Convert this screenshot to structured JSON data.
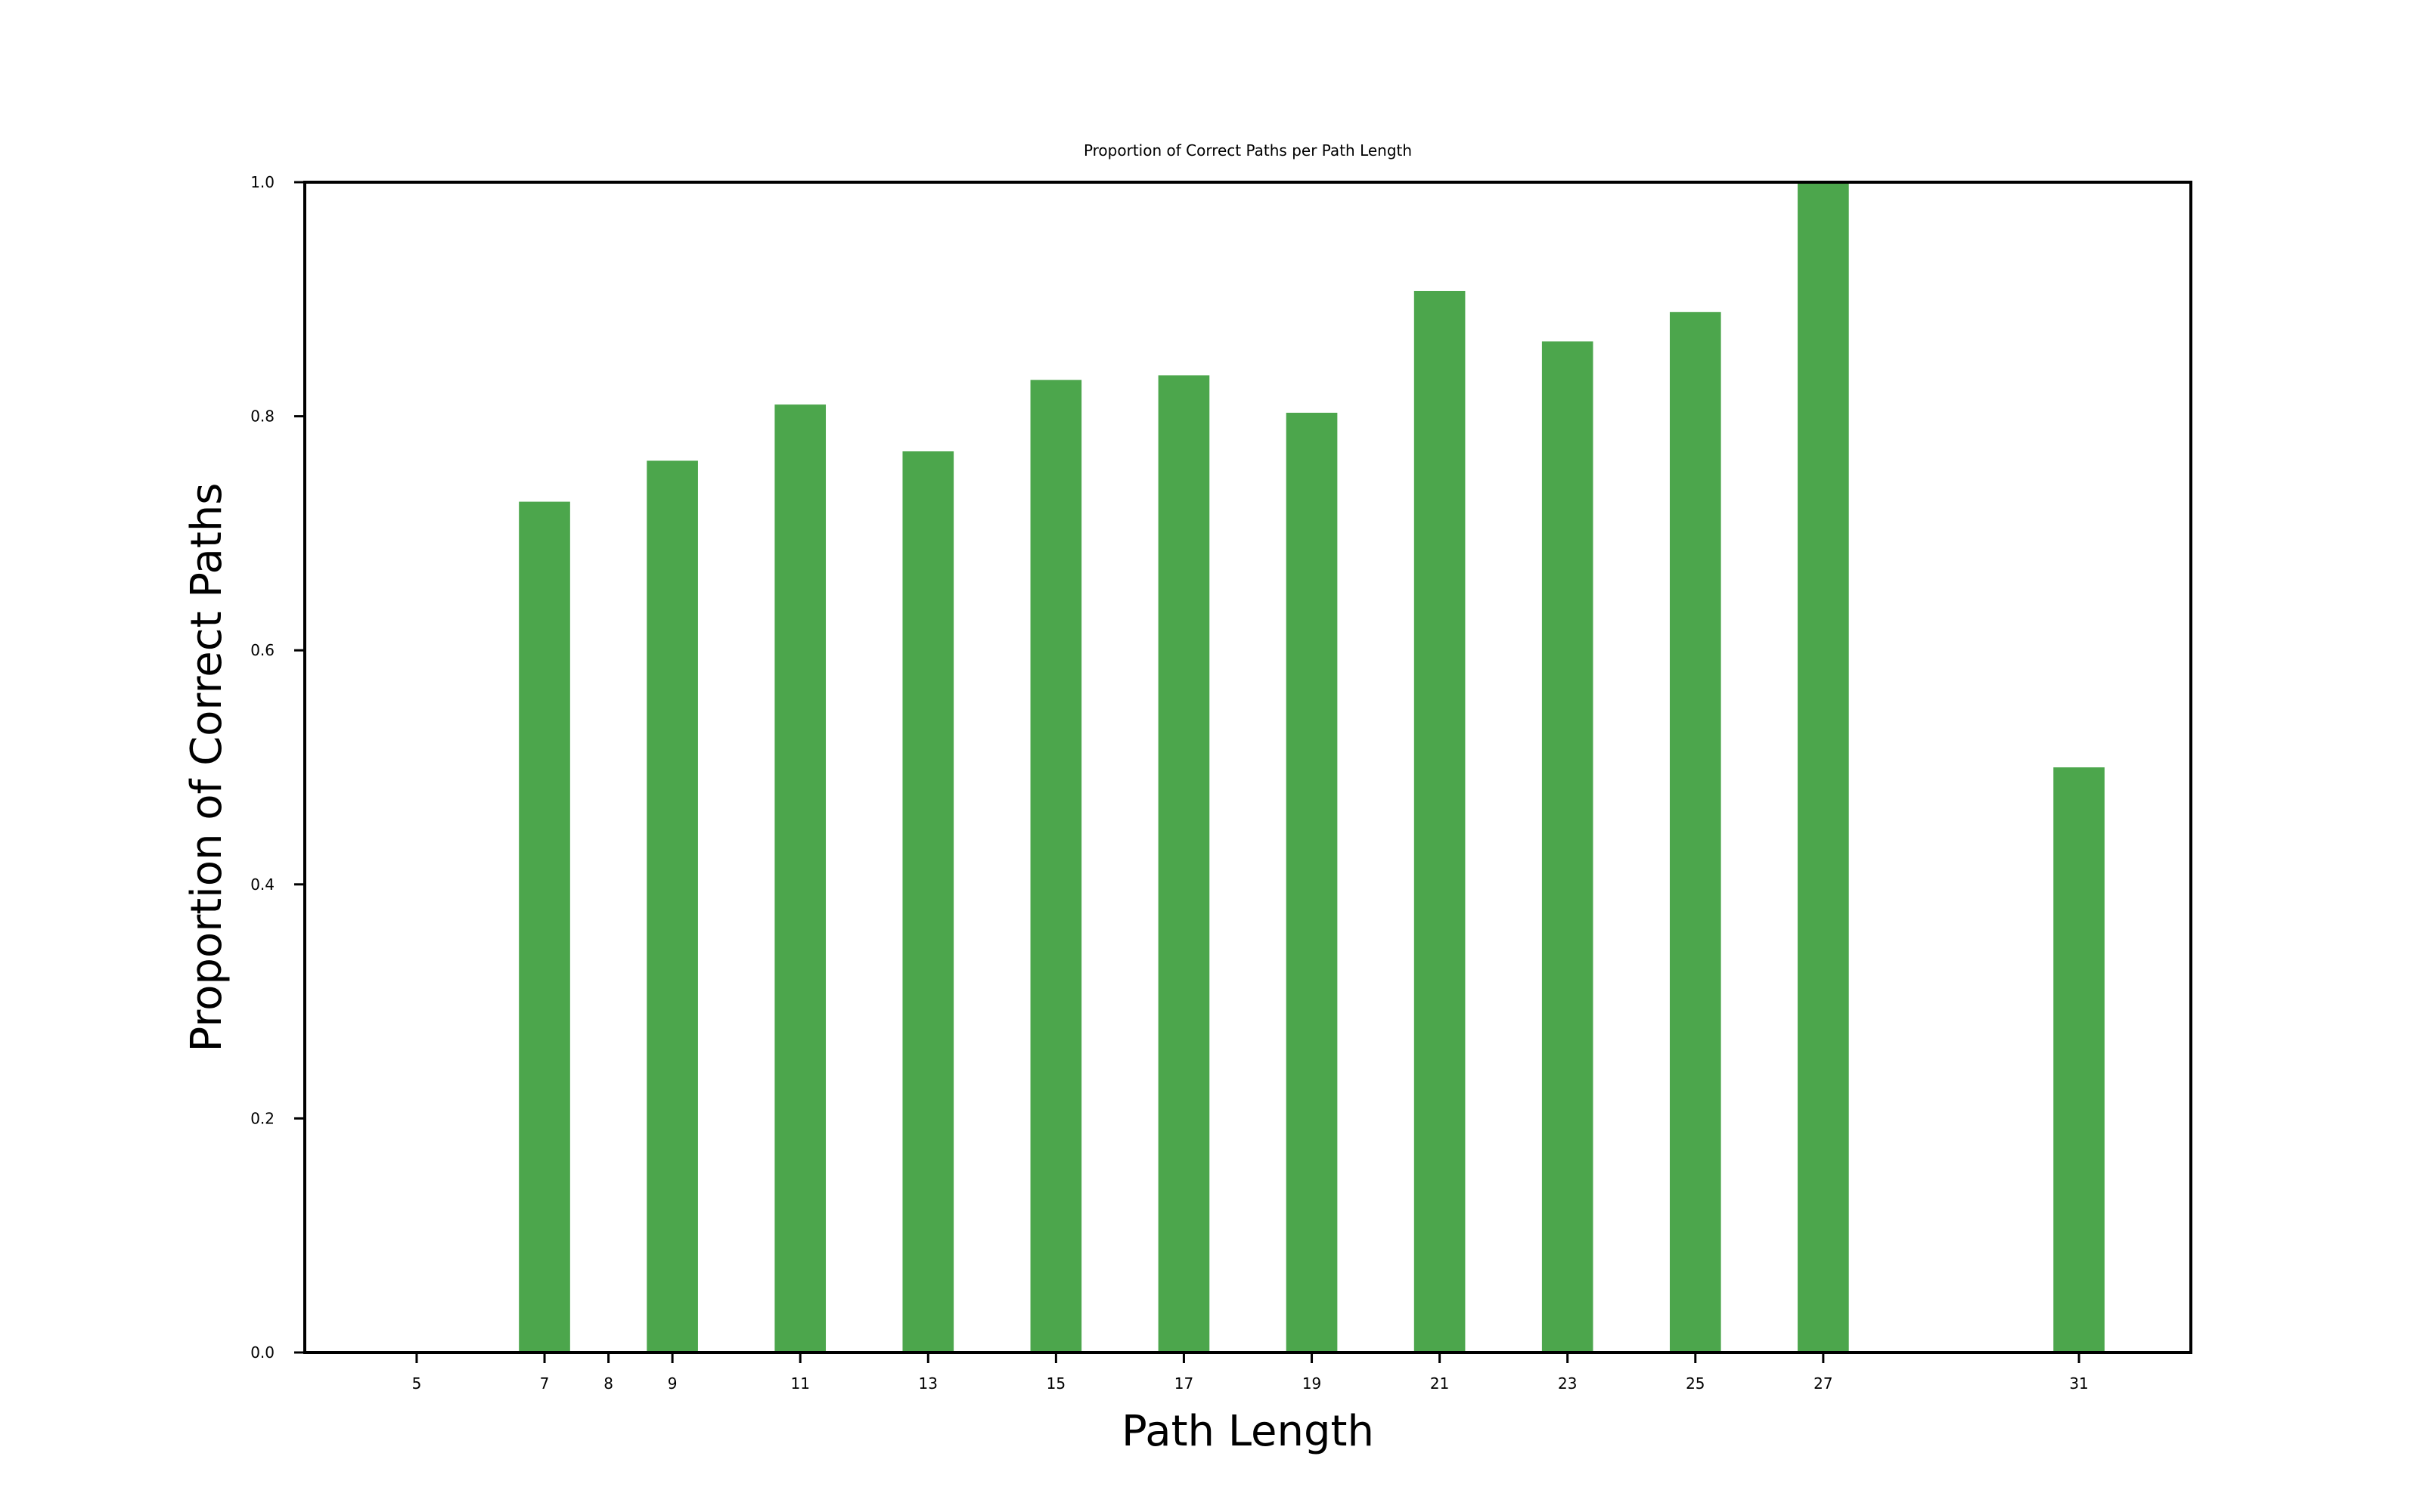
{
  "chart_data": {
    "type": "bar",
    "title": "Proportion of Correct Paths per Path Length",
    "xlabel": "Path Length",
    "ylabel": "Proportion of Correct Paths",
    "x_ticks": [
      5,
      7,
      8,
      9,
      11,
      13,
      15,
      17,
      19,
      21,
      23,
      25,
      27,
      31
    ],
    "y_ticks": [
      "0.0",
      "0.2",
      "0.4",
      "0.6",
      "0.8",
      "1.0"
    ],
    "xlim": [
      3.25,
      32.75
    ],
    "ylim": [
      0,
      1.0
    ],
    "bar_color": "#4ca64c",
    "bars": [
      {
        "x": 5,
        "value": 0.0
      },
      {
        "x": 7,
        "value": 0.727
      },
      {
        "x": 8,
        "value": 0.0
      },
      {
        "x": 9,
        "value": 0.762
      },
      {
        "x": 11,
        "value": 0.81
      },
      {
        "x": 13,
        "value": 0.77
      },
      {
        "x": 15,
        "value": 0.831
      },
      {
        "x": 17,
        "value": 0.835
      },
      {
        "x": 19,
        "value": 0.803
      },
      {
        "x": 21,
        "value": 0.907
      },
      {
        "x": 23,
        "value": 0.864
      },
      {
        "x": 25,
        "value": 0.889
      },
      {
        "x": 27,
        "value": 1.0
      },
      {
        "x": 31,
        "value": 0.5
      }
    ],
    "grid": false,
    "legend": "none"
  }
}
